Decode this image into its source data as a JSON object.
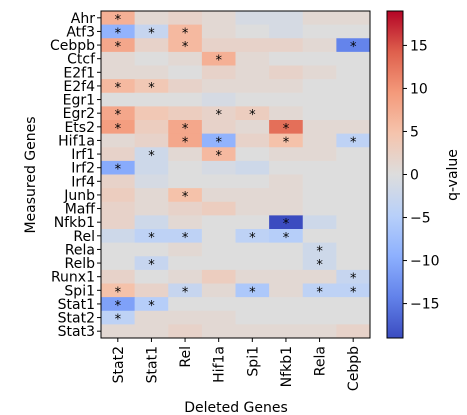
{
  "chart_data": {
    "type": "heatmap",
    "xlabel": "Deleted Genes",
    "ylabel": "Measured Genes",
    "colorbar_label": "q-value",
    "colormap": "coolwarm",
    "vmin": -19,
    "vmax": 19,
    "colorbar_ticks": [
      15,
      10,
      5,
      0,
      -5,
      -10,
      -15
    ],
    "columns": [
      "Stat2",
      "Stat1",
      "Rel",
      "Hif1a",
      "Spi1",
      "Nfkb1",
      "Rela",
      "Cebpb"
    ],
    "rows": [
      "Ahr",
      "Atf3",
      "Cebpb",
      "Ctcf",
      "E2f1",
      "E2f4",
      "Egr1",
      "Egr2",
      "Ets2",
      "Hif1a",
      "Irf1",
      "Irf2",
      "Irf4",
      "Junb",
      "Maff",
      "Nfkb1",
      "Rel",
      "Rela",
      "Relb",
      "Runx1",
      "Spi1",
      "Stat1",
      "Stat2",
      "Stat3"
    ],
    "values": [
      [
        7,
        1,
        2,
        1,
        -1,
        -1,
        1,
        1
      ],
      [
        -9,
        -3,
        6,
        1,
        0,
        -1,
        0,
        0
      ],
      [
        8,
        2,
        6,
        2,
        2,
        2,
        1,
        -14
      ],
      [
        1,
        0,
        1,
        7,
        1,
        0,
        0,
        0
      ],
      [
        1,
        1,
        0,
        2,
        1,
        2,
        1,
        0
      ],
      [
        6,
        4,
        2,
        1,
        1,
        1,
        0,
        0
      ],
      [
        0,
        0,
        0,
        -1,
        0,
        0,
        0,
        0
      ],
      [
        8,
        4,
        3,
        2,
        3,
        1,
        0,
        0
      ],
      [
        9,
        3,
        8,
        2,
        1,
        13,
        1,
        1
      ],
      [
        1,
        2,
        8,
        -9,
        2,
        5,
        1,
        -4
      ],
      [
        2,
        -2,
        1,
        6,
        0,
        1,
        1,
        0
      ],
      [
        -10,
        -2,
        0,
        -1,
        -2,
        0,
        0,
        0
      ],
      [
        2,
        -1,
        0,
        0,
        0,
        1,
        0,
        0
      ],
      [
        3,
        1,
        5,
        1,
        1,
        1,
        0,
        0
      ],
      [
        2,
        1,
        2,
        3,
        1,
        1,
        0,
        0
      ],
      [
        2,
        -2,
        1,
        0,
        0,
        -19,
        -2,
        0
      ],
      [
        -2,
        -4,
        -4,
        0,
        -4,
        -5,
        0,
        0
      ],
      [
        0,
        0,
        1,
        0,
        0,
        0,
        -2,
        0
      ],
      [
        0,
        -3,
        0,
        0,
        0,
        0,
        -2,
        0
      ],
      [
        2,
        0,
        1,
        3,
        1,
        1,
        1,
        -3
      ],
      [
        5,
        2,
        -3,
        1,
        -6,
        1,
        -4,
        -4
      ],
      [
        -11,
        -5,
        0,
        0,
        0,
        0,
        0,
        0
      ],
      [
        -4,
        1,
        1,
        1,
        0,
        0,
        0,
        0
      ],
      [
        1,
        1,
        2,
        1,
        1,
        1,
        1,
        2
      ]
    ],
    "significant": [
      [
        0,
        0
      ],
      [
        1,
        0
      ],
      [
        1,
        1
      ],
      [
        1,
        2
      ],
      [
        2,
        0
      ],
      [
        2,
        2
      ],
      [
        2,
        7
      ],
      [
        3,
        3
      ],
      [
        5,
        0
      ],
      [
        5,
        1
      ],
      [
        7,
        0
      ],
      [
        7,
        3
      ],
      [
        7,
        4
      ],
      [
        8,
        0
      ],
      [
        8,
        2
      ],
      [
        8,
        5
      ],
      [
        9,
        2
      ],
      [
        9,
        3
      ],
      [
        9,
        5
      ],
      [
        9,
        7
      ],
      [
        10,
        1
      ],
      [
        10,
        3
      ],
      [
        11,
        0
      ],
      [
        13,
        2
      ],
      [
        15,
        5
      ],
      [
        16,
        1
      ],
      [
        16,
        2
      ],
      [
        16,
        4
      ],
      [
        16,
        5
      ],
      [
        17,
        6
      ],
      [
        18,
        1
      ],
      [
        18,
        6
      ],
      [
        19,
        7
      ],
      [
        20,
        0
      ],
      [
        20,
        2
      ],
      [
        20,
        4
      ],
      [
        20,
        6
      ],
      [
        20,
        7
      ],
      [
        21,
        0
      ],
      [
        21,
        1
      ],
      [
        22,
        0
      ]
    ],
    "significance_marker": "*"
  }
}
